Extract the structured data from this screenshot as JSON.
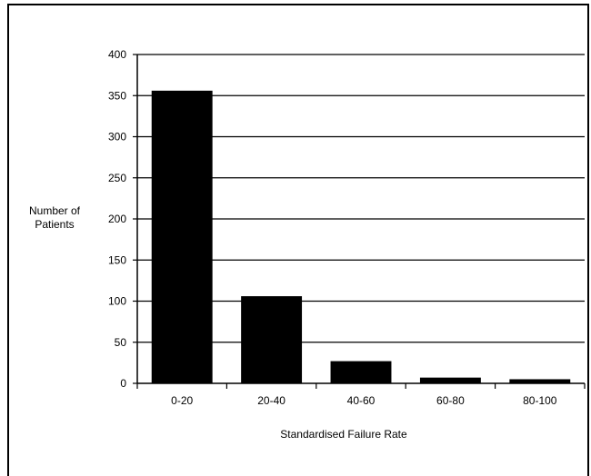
{
  "chart_data": {
    "type": "bar",
    "title": "",
    "xlabel": "Standardised Failure Rate",
    "ylabel_lines": [
      "Number of",
      "Patients"
    ],
    "categories": [
      "0-20",
      "20-40",
      "40-60",
      "60-80",
      "80-100"
    ],
    "values": [
      356,
      106,
      27,
      7,
      5
    ],
    "ylim": [
      0,
      400
    ],
    "yticks": [
      0,
      50,
      100,
      150,
      200,
      250,
      300,
      350,
      400
    ],
    "grid": true,
    "bar_color": "#000000",
    "legend": "none"
  }
}
